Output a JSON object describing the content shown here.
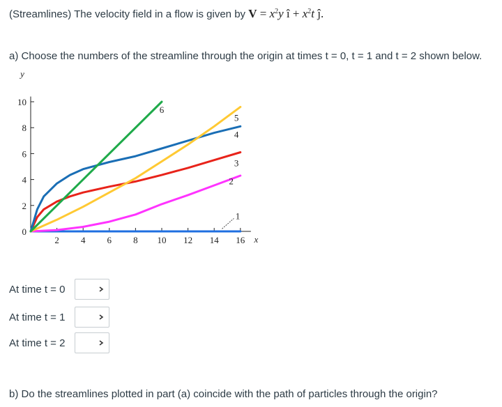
{
  "question": {
    "prefix": "(Streamlines) The velocity field in a flow is given by",
    "formula": {
      "vec": "V",
      "eq": "=",
      "x1": "x",
      "exp1": "2",
      "y": "y",
      "i_hat": "î",
      "plus": "+",
      "x2": "x",
      "exp2": "2",
      "t": "t",
      "j_hat": "ĵ",
      "end": "."
    }
  },
  "part_a": {
    "text": "a) Choose the numbers of the streamline through the origin at times t = 0, t = 1 and t = 2 shown below."
  },
  "chart_data": {
    "type": "line",
    "xlabel": "x",
    "ylabel": "y",
    "xlim": [
      0,
      16
    ],
    "ylim": [
      0,
      10
    ],
    "x_ticks": [
      "2",
      "4",
      "6",
      "8",
      "10",
      "12",
      "14",
      "16"
    ],
    "y_ticks": [
      "0",
      "2",
      "4",
      "6",
      "8",
      "10"
    ],
    "series": [
      {
        "name": "1",
        "color": "#1f6fe0",
        "points": [
          [
            0,
            0
          ],
          [
            16,
            0
          ]
        ]
      },
      {
        "name": "2",
        "color": "#ff33ff",
        "points": [
          [
            0,
            0
          ],
          [
            2,
            0.1
          ],
          [
            4,
            0.35
          ],
          [
            6,
            0.75
          ],
          [
            8,
            1.3
          ],
          [
            10,
            2.1
          ],
          [
            12,
            2.8
          ],
          [
            14,
            3.55
          ],
          [
            16,
            4.3
          ]
        ]
      },
      {
        "name": "3",
        "color": "#e8231a",
        "points": [
          [
            0,
            0
          ],
          [
            0.5,
            1.1
          ],
          [
            1,
            1.7
          ],
          [
            2,
            2.3
          ],
          [
            3,
            2.7
          ],
          [
            4,
            3
          ],
          [
            6,
            3.45
          ],
          [
            8,
            3.85
          ],
          [
            10,
            4.35
          ],
          [
            12,
            4.9
          ],
          [
            14,
            5.5
          ],
          [
            16,
            6.1
          ]
        ]
      },
      {
        "name": "4",
        "color": "#1a6eb5",
        "points": [
          [
            0,
            0
          ],
          [
            0.5,
            1.7
          ],
          [
            1,
            2.7
          ],
          [
            2,
            3.7
          ],
          [
            3,
            4.35
          ],
          [
            4,
            4.8
          ],
          [
            6,
            5.35
          ],
          [
            8,
            5.8
          ],
          [
            10,
            6.4
          ],
          [
            12,
            7
          ],
          [
            14,
            7.6
          ],
          [
            16,
            8.1
          ]
        ]
      },
      {
        "name": "5",
        "color": "#ffc933",
        "points": [
          [
            0,
            0
          ],
          [
            2,
            0.9
          ],
          [
            4,
            1.9
          ],
          [
            6,
            3
          ],
          [
            8,
            4.1
          ],
          [
            10,
            5.4
          ],
          [
            12,
            6.7
          ],
          [
            14,
            8.1
          ],
          [
            16,
            9.6
          ]
        ]
      },
      {
        "name": "6",
        "color": "#1faa4a",
        "points": [
          [
            0,
            0
          ],
          [
            10,
            10
          ]
        ]
      }
    ],
    "curve_labels": [
      {
        "text": "6",
        "x": 10,
        "y": 9.4
      },
      {
        "text": "5",
        "x": 15.7,
        "y": 8.8
      },
      {
        "text": "4",
        "x": 15.7,
        "y": 7.5
      },
      {
        "text": "3",
        "x": 15.7,
        "y": 5.3
      },
      {
        "text": "2",
        "x": 15.3,
        "y": 3.9
      },
      {
        "text": "1",
        "x": 15.8,
        "y": 1.2
      }
    ],
    "grid": false,
    "legend": "none"
  },
  "answers": [
    {
      "label": "At time t = 0",
      "selected": ""
    },
    {
      "label": "At time t = 1",
      "selected": ""
    },
    {
      "label": "At time t = 2",
      "selected": ""
    }
  ],
  "part_b": {
    "text": "b) Do the streamlines plotted in part (a) coincide with the path of particles through the origin?"
  }
}
